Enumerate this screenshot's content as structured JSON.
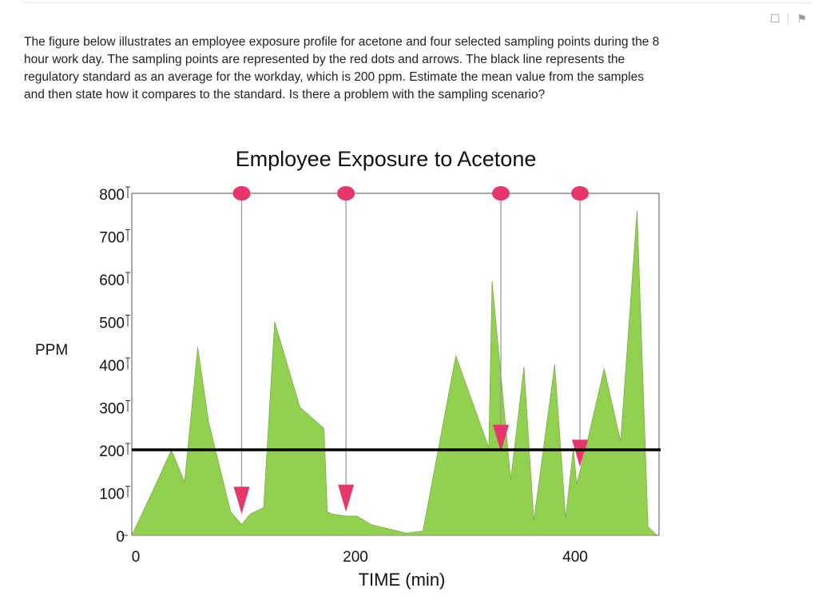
{
  "question": {
    "text": "The figure below illustrates an employee exposure profile for acetone and four selected sampling points during the 8 hour work day. The sampling points are represented by the red dots and arrows. The black line represents the regulatory standard as an average for the workday, which is 200 ppm. Estimate the mean value from the samples and then state how it compares to the standard. Is there a problem with the sampling scenario?"
  },
  "toolbar": {
    "bookmark_icon": "bookmark-icon",
    "flag_icon": "flag-icon"
  },
  "chart_data": {
    "type": "area",
    "title": "Employee Exposure to Acetone",
    "xlabel": "TIME (min)",
    "ylabel": "PPM",
    "xlim": [
      0,
      480
    ],
    "ylim": [
      0,
      800
    ],
    "xticks": [
      0,
      200,
      400
    ],
    "yticks": [
      0,
      100,
      200,
      300,
      400,
      500,
      600,
      700,
      800
    ],
    "grid": false,
    "fill_color": "#92d050",
    "marker_color": "#e8366b",
    "standard_line": {
      "y": 200,
      "color": "#000000"
    },
    "series": [
      {
        "x": [
          0,
          22,
          36,
          48,
          60,
          70,
          90,
          100,
          108,
          120,
          130,
          153,
          175,
          178,
          182,
          195,
          205,
          218,
          250,
          265,
          295,
          325,
          328,
          345,
          357,
          366,
          385,
          395,
          402,
          405,
          412,
          430,
          445,
          460,
          470,
          478
        ],
        "y": [
          0,
          120,
          200,
          125,
          440,
          265,
          55,
          25,
          50,
          65,
          500,
          300,
          250,
          55,
          50,
          45,
          45,
          25,
          5,
          10,
          420,
          205,
          595,
          130,
          395,
          35,
          400,
          40,
          205,
          120,
          190,
          390,
          220,
          760,
          20,
          0
        ]
      }
    ],
    "sampling_points": [
      {
        "x": 100,
        "y": 50
      },
      {
        "x": 195,
        "y": 55
      },
      {
        "x": 336,
        "y": 195
      },
      {
        "x": 408,
        "y": 160
      }
    ]
  }
}
